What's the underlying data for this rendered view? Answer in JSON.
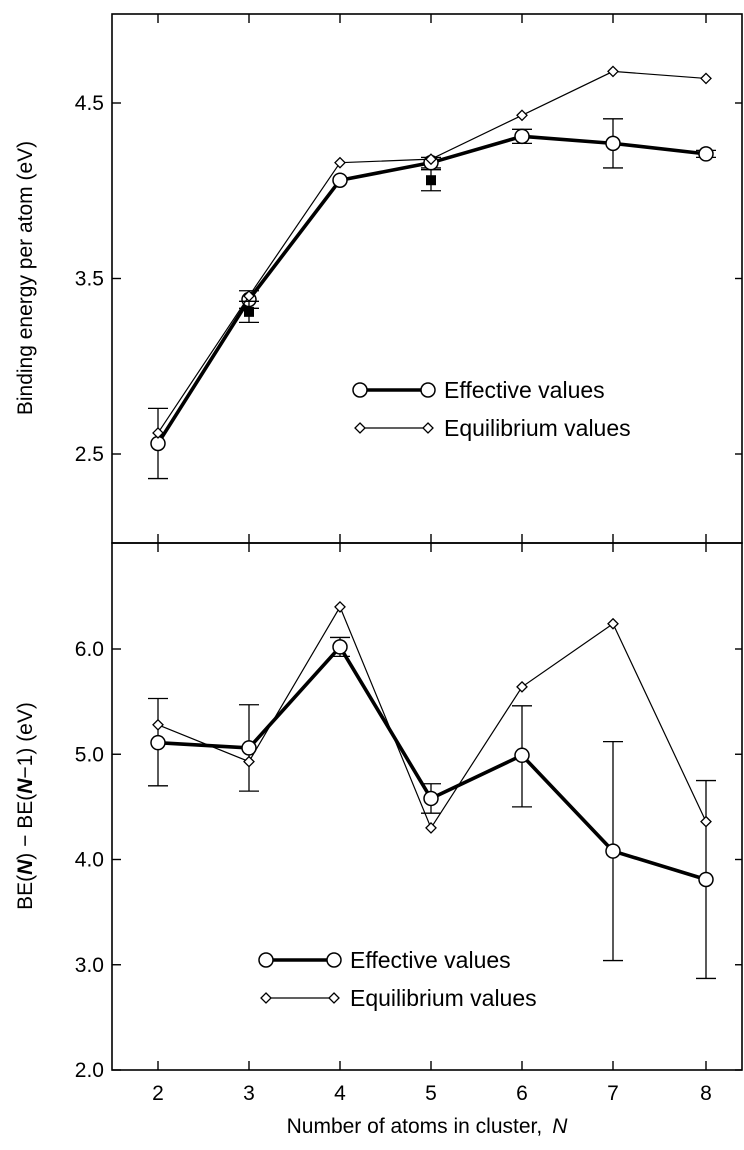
{
  "chart_data": [
    {
      "type": "line",
      "panel": "top",
      "ylabel": "Binding energy per atom (eV)",
      "xlabel": "",
      "x": [
        2,
        3,
        4,
        5,
        6,
        7,
        8
      ],
      "xlim": [
        1.5,
        8.4
      ],
      "ylim": [
        2.0,
        5.0
      ],
      "yticks": [
        2.5,
        3.5,
        4.5
      ],
      "ytick_labels": [
        "2.5",
        "3.5",
        "4.5"
      ],
      "grid": false,
      "legend_position": "lower-right",
      "series": [
        {
          "name": "Effective values",
          "marker": "circle",
          "values": [
            2.56,
            3.38,
            4.06,
            4.16,
            4.31,
            4.27,
            4.21
          ],
          "error_low": [
            2.36,
            3.33,
            null,
            4.13,
            4.27,
            4.13,
            4.19
          ],
          "error_high": [
            2.76,
            3.43,
            null,
            4.19,
            4.35,
            4.41,
            4.23
          ]
        },
        {
          "name": "Equilibrium values",
          "marker": "diamond",
          "values": [
            2.62,
            3.4,
            4.16,
            4.18,
            4.43,
            4.68,
            4.64
          ]
        },
        {
          "name": "",
          "marker": "filled-square",
          "points": [
            [
              3,
              3.31
            ],
            [
              5,
              4.06
            ]
          ],
          "error_low": [
            3.25,
            4.0
          ],
          "error_high": [
            3.37,
            4.12
          ]
        }
      ]
    },
    {
      "type": "line",
      "panel": "bottom",
      "ylabel": "BE(N) − BE(N−1) (eV)",
      "xlabel": "Number of atoms in cluster,  N",
      "x": [
        2,
        3,
        4,
        5,
        6,
        7,
        8
      ],
      "xtick_labels": [
        "2",
        "3",
        "4",
        "5",
        "6",
        "7",
        "8"
      ],
      "xlim": [
        1.5,
        8.4
      ],
      "ylim": [
        2.0,
        6.9
      ],
      "yticks": [
        2.0,
        3.0,
        4.0,
        5.0,
        6.0
      ],
      "ytick_labels": [
        "2.0",
        "3.0",
        "4.0",
        "5.0",
        "6.0"
      ],
      "grid": false,
      "legend_position": "lower-center",
      "series": [
        {
          "name": "Effective values",
          "marker": "circle",
          "values": [
            5.11,
            5.06,
            6.02,
            4.58,
            4.99,
            4.08,
            3.81
          ],
          "error_low": [
            4.7,
            4.65,
            5.93,
            4.44,
            4.5,
            3.04,
            2.87
          ],
          "error_high": [
            5.53,
            5.47,
            6.11,
            4.72,
            5.46,
            5.12,
            4.75
          ]
        },
        {
          "name": "Equilibrium values",
          "marker": "diamond",
          "values": [
            5.28,
            4.93,
            6.4,
            4.3,
            5.64,
            6.24,
            4.36
          ]
        }
      ]
    }
  ],
  "legends": {
    "top": {
      "effective": "Effective values",
      "equilibrium": "Equilibrium values"
    },
    "bottom": {
      "effective": "Effective values",
      "equilibrium": "Equilibrium values"
    }
  },
  "labels": {
    "top_ylabel": "Binding energy per atom (eV)",
    "bottom_ylabel_parts": [
      "BE(",
      "N",
      ") − BE(",
      "N",
      "−1) (eV)"
    ],
    "xlabel_text": "Number of atoms in cluster,",
    "xlabel_var": "N"
  }
}
